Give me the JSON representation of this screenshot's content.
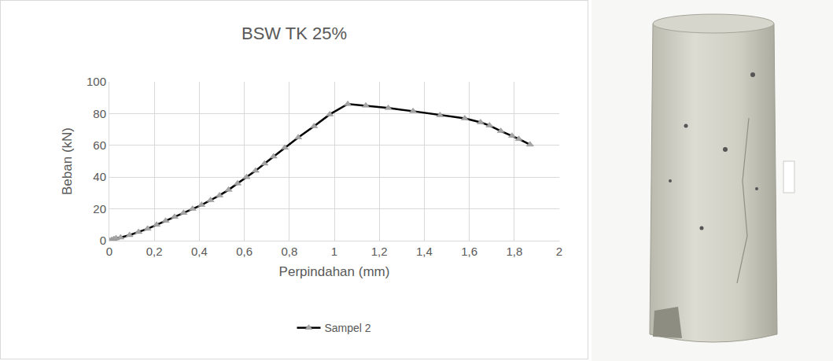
{
  "chart_data": {
    "type": "line",
    "title": "BSW TK 25%",
    "x_label": "Perpindahan (mm)",
    "y_label": "Beban (kN)",
    "series": [
      {
        "name": "Sampel 2",
        "color": "#000000",
        "marker": "triangle-up",
        "line_style": "solid",
        "x": [
          0,
          0.01,
          0.02,
          0.03,
          0.05,
          0.09,
          0.13,
          0.17,
          0.21,
          0.25,
          0.29,
          0.33,
          0.37,
          0.41,
          0.45,
          0.49,
          0.53,
          0.57,
          0.61,
          0.65,
          0.69,
          0.73,
          0.78,
          0.84,
          0.91,
          0.98,
          1.06,
          1.14,
          1.24,
          1.35,
          1.47,
          1.58,
          1.65,
          1.69,
          1.74,
          1.79,
          1.82,
          1.87
        ],
        "values": [
          0,
          0.5,
          1,
          1.5,
          2,
          3.5,
          5.5,
          7.5,
          10,
          12.5,
          15,
          17.5,
          20,
          22.5,
          25.5,
          28.5,
          32,
          36,
          40,
          44,
          48.5,
          53,
          58.5,
          65,
          72,
          79.5,
          86,
          85,
          83.5,
          81.5,
          79,
          77,
          74.5,
          72.5,
          69,
          66,
          64,
          60.5
        ]
      }
    ],
    "xlim": [
      0,
      2
    ],
    "xticks": [
      0,
      {
        "value": 0.2,
        "label": "0,2"
      },
      {
        "value": 0.4,
        "label": "0,4"
      },
      {
        "value": 0.6,
        "label": "0,6"
      },
      {
        "value": 0.8,
        "label": "0,8"
      },
      1,
      {
        "value": 1.2,
        "label": "1,2"
      },
      {
        "value": 1.4,
        "label": "1,4"
      },
      {
        "value": 1.6,
        "label": "1,6"
      },
      {
        "value": 1.8,
        "label": "1,8"
      },
      2
    ],
    "ylim": [
      0,
      100
    ],
    "yticks": [
      0,
      20,
      40,
      60,
      80,
      100
    ],
    "grid": true,
    "legend": "bottom"
  }
}
